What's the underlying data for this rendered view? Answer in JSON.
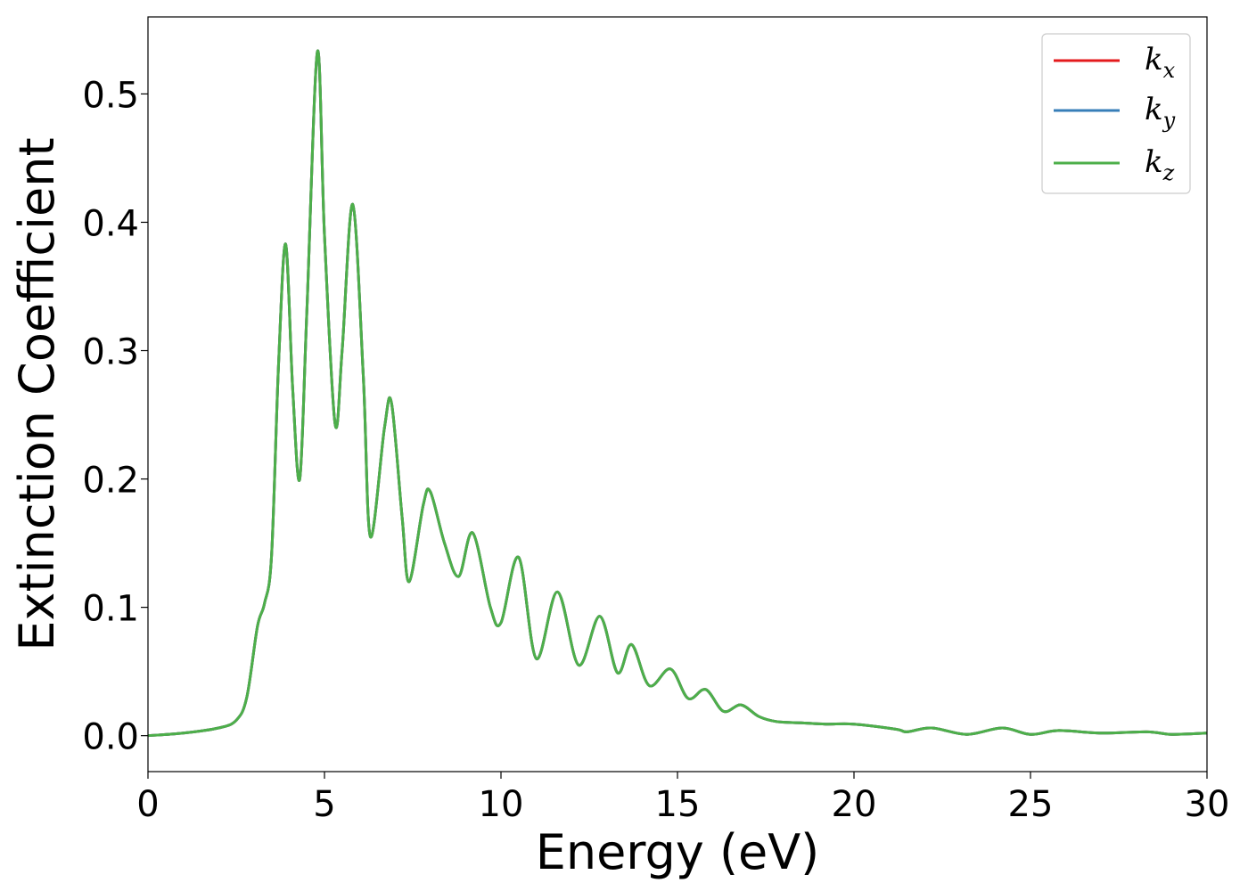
{
  "chart_data": {
    "type": "line",
    "title": "",
    "xlabel": "Energy (eV)",
    "ylabel": "Extinction Coefficient",
    "xlim": [
      0,
      30
    ],
    "ylim": [
      -0.028,
      0.56
    ],
    "xticks": [
      0,
      5,
      10,
      15,
      20,
      25,
      30
    ],
    "xtick_labels": [
      "0",
      "5",
      "10",
      "15",
      "20",
      "25",
      "30"
    ],
    "yticks": [
      0.0,
      0.1,
      0.2,
      0.3,
      0.4,
      0.5
    ],
    "ytick_labels": [
      "0.0",
      "0.1",
      "0.2",
      "0.3",
      "0.4",
      "0.5"
    ],
    "grid": false,
    "legend_position": "top-right",
    "x": [
      0,
      1,
      2,
      2.5,
      2.8,
      3.1,
      3.3,
      3.5,
      3.7,
      3.9,
      4.1,
      4.3,
      4.5,
      4.8,
      5.0,
      5.3,
      5.5,
      5.8,
      6.1,
      6.3,
      6.7,
      6.9,
      7.2,
      7.4,
      7.8,
      8.0,
      8.4,
      8.8,
      9.2,
      9.7,
      10.0,
      10.5,
      11.0,
      11.6,
      12.2,
      12.8,
      13.3,
      13.7,
      14.2,
      14.8,
      15.3,
      15.8,
      16.3,
      16.8,
      17.3,
      17.8,
      18.5,
      19.2,
      20.0,
      21.2,
      21.5,
      22.2,
      23.2,
      24.2,
      25.0,
      25.8,
      27.0,
      28.3,
      29.0,
      30.0
    ],
    "y": [
      0.0,
      0.002,
      0.006,
      0.012,
      0.03,
      0.085,
      0.103,
      0.14,
      0.29,
      0.383,
      0.27,
      0.2,
      0.33,
      0.533,
      0.39,
      0.243,
      0.3,
      0.414,
      0.28,
      0.155,
      0.24,
      0.259,
      0.17,
      0.12,
      0.18,
      0.19,
      0.15,
      0.124,
      0.158,
      0.1,
      0.088,
      0.139,
      0.06,
      0.112,
      0.055,
      0.093,
      0.049,
      0.071,
      0.039,
      0.052,
      0.029,
      0.036,
      0.019,
      0.024,
      0.015,
      0.011,
      0.01,
      0.009,
      0.009,
      0.005,
      0.003,
      0.006,
      0.001,
      0.006,
      0.001,
      0.004,
      0.002,
      0.003,
      0.001,
      0.002
    ],
    "series": [
      {
        "name": "k_x",
        "label_base": "k",
        "label_sub": "x",
        "color": "#e41a1c"
      },
      {
        "name": "k_y",
        "label_base": "k",
        "label_sub": "y",
        "color": "#377eb8"
      },
      {
        "name": "k_z",
        "label_base": "k",
        "label_sub": "z",
        "color": "#4daf4a"
      }
    ]
  }
}
